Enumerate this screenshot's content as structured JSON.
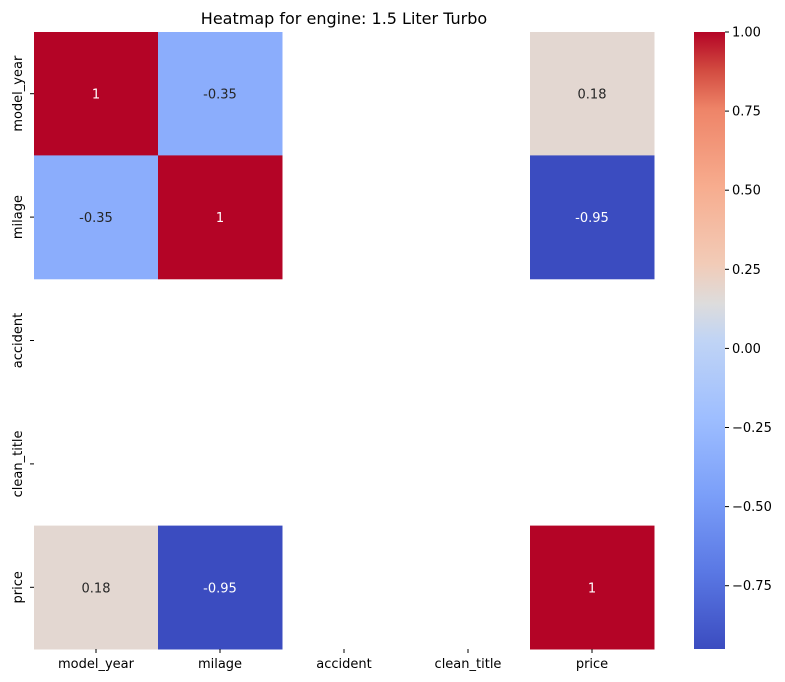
{
  "chart_data": {
    "type": "heatmap",
    "title": "Heatmap for engine: 1.5 Liter Turbo",
    "xlabel": "",
    "ylabel": "",
    "x_categories": [
      "model_year",
      "milage",
      "accident",
      "clean_title",
      "price"
    ],
    "y_categories": [
      "model_year",
      "milage",
      "accident",
      "clean_title",
      "price"
    ],
    "values": [
      [
        1,
        -0.35,
        null,
        null,
        0.18
      ],
      [
        -0.35,
        1,
        null,
        null,
        -0.95
      ],
      [
        null,
        null,
        null,
        null,
        null
      ],
      [
        null,
        null,
        null,
        null,
        null
      ],
      [
        0.18,
        -0.95,
        null,
        null,
        1
      ]
    ],
    "annotations": [
      [
        "1",
        "-0.35",
        "",
        "",
        "0.18"
      ],
      [
        "-0.35",
        "1",
        "",
        "",
        "-0.95"
      ],
      [
        "",
        "",
        "",
        "",
        ""
      ],
      [
        "",
        "",
        "",
        "",
        ""
      ],
      [
        "0.18",
        "-0.95",
        "",
        "",
        "1"
      ]
    ],
    "colormap": "coolwarm",
    "vmin": -0.95,
    "vmax": 1.0,
    "colorbar": {
      "ticks": [
        1.0,
        0.75,
        0.5,
        0.25,
        0.0,
        -0.25,
        -0.5,
        -0.75
      ],
      "tick_labels": [
        "1.00",
        "0.75",
        "0.50",
        "0.25",
        "0.00",
        "−0.25",
        "−0.50",
        "−0.75"
      ]
    },
    "grid": false,
    "legend": "colorbar-right"
  }
}
